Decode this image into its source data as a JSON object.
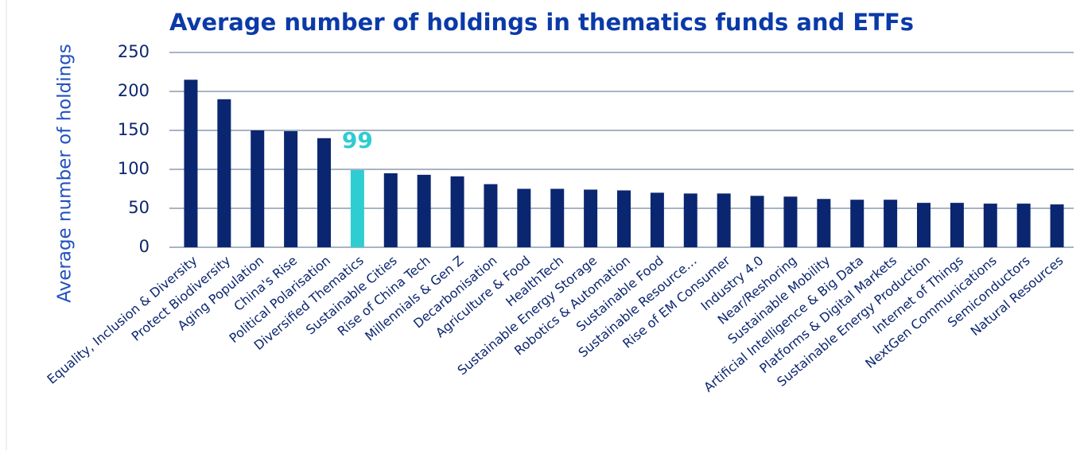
{
  "chart_data": {
    "type": "bar",
    "title": "Average number of holdings in thematics funds and ETFs",
    "ylabel": "Average number of holdings",
    "categories": [
      "Equality, Inclusion & Diversity",
      "Protect Biodiversity",
      "Aging Population",
      "China's Rise",
      "Political Polarisation",
      "Diversified Thematics",
      "Sustainable Cities",
      "Rise of China Tech",
      "Millennials & Gen Z",
      "Decarbonisation",
      "Agriculture & Food",
      "HealthTech",
      "Sustainable Energy Storage",
      "Robotics & Automation",
      "Sustainable Food",
      "Sustainable Resource…",
      "Rise of EM Consumer",
      "Industry 4.0",
      "Near/Reshoring",
      "Sustainable Mobility",
      "Artificial Intelligence & Big Data",
      "Platforms & Digital Markets",
      "Sustainable Energy Production",
      "Internet of Things",
      "NextGen Communications",
      "Semiconductors",
      "Natural Resources"
    ],
    "values": [
      215,
      190,
      150,
      149,
      140,
      99,
      95,
      93,
      91,
      81,
      75,
      75,
      74,
      73,
      70,
      69,
      69,
      66,
      65,
      62,
      61,
      61,
      57,
      57,
      56,
      56,
      55
    ],
    "value_labels": [
      null,
      null,
      null,
      null,
      null,
      "99",
      null,
      null,
      null,
      null,
      null,
      null,
      null,
      null,
      null,
      null,
      null,
      null,
      null,
      null,
      null,
      null,
      null,
      null,
      null,
      null,
      null
    ],
    "colors": [
      "#0b2670",
      "#0b2670",
      "#0b2670",
      "#0b2670",
      "#0b2670",
      "#2ecdd2",
      "#0b2670",
      "#0b2670",
      "#0b2670",
      "#0b2670",
      "#0b2670",
      "#0b2670",
      "#0b2670",
      "#0b2670",
      "#0b2670",
      "#0b2670",
      "#0b2670",
      "#0b2670",
      "#0b2670",
      "#0b2670",
      "#0b2670",
      "#0b2670",
      "#0b2670",
      "#0b2670",
      "#0b2670",
      "#0b2670",
      "#0b2670"
    ],
    "ylim": [
      0,
      250
    ],
    "yticks": [
      0,
      50,
      100,
      150,
      200,
      250
    ],
    "grid": true
  }
}
